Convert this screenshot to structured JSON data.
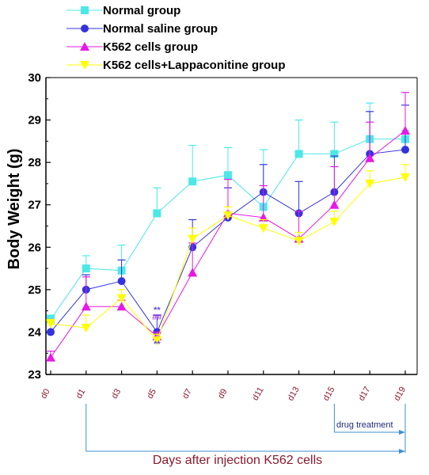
{
  "chart_data": {
    "type": "line",
    "title": "",
    "ylabel": "Body Weight (g)",
    "xlabel": "Days after injection K562 cells",
    "ylim": [
      23,
      30
    ],
    "yticks": [
      "23",
      "24",
      "25",
      "26",
      "27",
      "28",
      "29",
      "30"
    ],
    "x": [
      "d0",
      "d1",
      "d3",
      "d5",
      "d7",
      "d9",
      "d11",
      "d13",
      "d15",
      "d17",
      "d19"
    ],
    "annotation": "drug treatment",
    "significance_marks": [
      "**",
      "##",
      "**"
    ],
    "legend_position": "top-left",
    "series": [
      {
        "name": "Normal group",
        "color": "#4ce8e8",
        "marker": "square",
        "values": [
          24.3,
          25.5,
          25.45,
          26.8,
          27.55,
          27.7,
          26.95,
          28.2,
          28.2,
          28.55,
          28.55
        ],
        "errors": [
          0.1,
          0.3,
          0.6,
          0.6,
          0.85,
          0.65,
          1.35,
          0.8,
          0.75,
          0.85,
          0.2
        ]
      },
      {
        "name": "Normal saline group",
        "color": "#3333dd",
        "marker": "circle",
        "values": [
          24.0,
          25.0,
          25.2,
          24.0,
          26.0,
          26.7,
          27.3,
          26.8,
          27.3,
          28.2,
          28.3
        ],
        "errors": [
          0.3,
          0.35,
          0.5,
          0.4,
          0.65,
          0.7,
          0.65,
          0.75,
          0.85,
          1.0,
          1.05
        ]
      },
      {
        "name": "K562 cells group",
        "color": "#e619e6",
        "marker": "triangle-up",
        "values": [
          23.4,
          24.6,
          24.6,
          23.9,
          25.4,
          26.8,
          26.7,
          26.2,
          27.0,
          28.1,
          28.75
        ],
        "errors": [
          0.15,
          0.7,
          0.15,
          0.1,
          0.7,
          0.8,
          0.75,
          0.65,
          0.9,
          0.85,
          0.9
        ]
      },
      {
        "name": "K562 cells+Lappaconitine group",
        "color": "#ffff00",
        "marker": "triangle-down",
        "values": [
          24.2,
          24.1,
          24.8,
          23.8,
          26.2,
          26.75,
          26.45,
          26.15,
          26.6,
          27.5,
          27.65
        ],
        "errors": [
          0.1,
          0.3,
          0.2,
          0.15,
          0.25,
          0.2,
          0.2,
          0.2,
          0.25,
          0.3,
          0.3
        ]
      }
    ]
  }
}
